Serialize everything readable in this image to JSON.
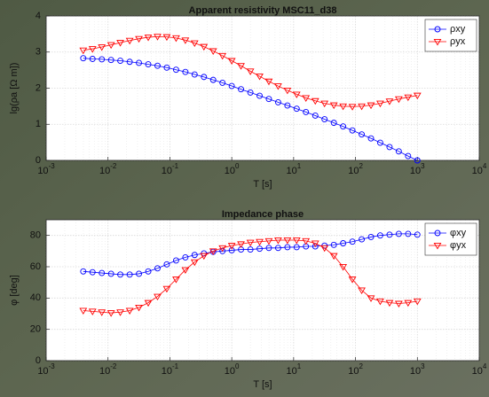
{
  "chart_data": [
    {
      "type": "line",
      "title": "Apparent resistivity MSC11_d38",
      "xlabel": "T [s]",
      "ylabel": "lg(ρa [Ω m])",
      "xscale": "log",
      "grid": true,
      "legend": "upper right",
      "xlim": [
        0.001,
        10000
      ],
      "ylim": [
        0,
        4
      ],
      "xticks": [
        {
          "value": 0.001,
          "label": "10",
          "exponent": "-3"
        },
        {
          "value": 0.01,
          "label": "10",
          "exponent": "-2"
        },
        {
          "value": 0.1,
          "label": "10",
          "exponent": "-1"
        },
        {
          "value": 1,
          "label": "10",
          "exponent": "0"
        },
        {
          "value": 10,
          "label": "10",
          "exponent": "1"
        },
        {
          "value": 100,
          "label": "10",
          "exponent": "2"
        },
        {
          "value": 1000,
          "label": "10",
          "exponent": "3"
        },
        {
          "value": 10000,
          "label": "10",
          "exponent": "4"
        }
      ],
      "yticks": [
        0,
        1,
        2,
        3,
        4
      ],
      "x": [
        0.00398,
        0.00562,
        0.00794,
        0.0112,
        0.0158,
        0.0224,
        0.0316,
        0.0447,
        0.0631,
        0.0891,
        0.126,
        0.178,
        0.251,
        0.355,
        0.501,
        0.708,
        1,
        1.41,
        2,
        2.82,
        3.98,
        5.62,
        7.94,
        11.2,
        15.8,
        22.4,
        31.6,
        44.7,
        63.1,
        89.1,
        126,
        178,
        251,
        355,
        501,
        708,
        1000
      ],
      "series": [
        {
          "name": "ρxy",
          "color": "#0000ff",
          "marker": "circle",
          "values": [
            2.83,
            2.81,
            2.8,
            2.78,
            2.76,
            2.73,
            2.7,
            2.66,
            2.62,
            2.57,
            2.51,
            2.45,
            2.38,
            2.31,
            2.23,
            2.15,
            2.06,
            1.97,
            1.88,
            1.79,
            1.7,
            1.61,
            1.52,
            1.43,
            1.34,
            1.24,
            1.14,
            1.04,
            0.94,
            0.83,
            0.72,
            0.61,
            0.49,
            0.37,
            0.25,
            0.12,
            0.0
          ]
        },
        {
          "name": "ρyx",
          "color": "#ff0000",
          "marker": "triangle-down",
          "values": [
            3.05,
            3.09,
            3.14,
            3.2,
            3.26,
            3.32,
            3.37,
            3.41,
            3.43,
            3.42,
            3.39,
            3.33,
            3.25,
            3.15,
            3.03,
            2.9,
            2.76,
            2.62,
            2.47,
            2.33,
            2.19,
            2.06,
            1.94,
            1.83,
            1.73,
            1.65,
            1.58,
            1.53,
            1.5,
            1.49,
            1.5,
            1.53,
            1.58,
            1.64,
            1.7,
            1.75,
            1.8
          ]
        }
      ]
    },
    {
      "type": "line",
      "title": "Impedance phase",
      "xlabel": "T [s]",
      "ylabel": "φ [deg]",
      "xscale": "log",
      "grid": true,
      "legend": "upper right",
      "xlim": [
        0.001,
        10000
      ],
      "ylim": [
        0,
        90
      ],
      "xticks": [
        {
          "value": 0.001,
          "label": "10",
          "exponent": "-3"
        },
        {
          "value": 0.01,
          "label": "10",
          "exponent": "-2"
        },
        {
          "value": 0.1,
          "label": "10",
          "exponent": "-1"
        },
        {
          "value": 1,
          "label": "10",
          "exponent": "0"
        },
        {
          "value": 10,
          "label": "10",
          "exponent": "1"
        },
        {
          "value": 100,
          "label": "10",
          "exponent": "2"
        },
        {
          "value": 1000,
          "label": "10",
          "exponent": "3"
        },
        {
          "value": 10000,
          "label": "10",
          "exponent": "4"
        }
      ],
      "yticks": [
        0,
        20,
        40,
        60,
        80
      ],
      "x": [
        0.00398,
        0.00562,
        0.00794,
        0.0112,
        0.0158,
        0.0224,
        0.0316,
        0.0447,
        0.0631,
        0.0891,
        0.126,
        0.178,
        0.251,
        0.355,
        0.501,
        0.708,
        1,
        1.41,
        2,
        2.82,
        3.98,
        5.62,
        7.94,
        11.2,
        15.8,
        22.4,
        31.6,
        44.7,
        63.1,
        89.1,
        126,
        178,
        251,
        355,
        501,
        708,
        1000
      ],
      "series": [
        {
          "name": "φxy",
          "color": "#0000ff",
          "marker": "circle",
          "values": [
            57,
            56.5,
            56,
            55.5,
            55,
            55,
            55.5,
            57,
            59,
            61.5,
            64,
            66,
            67.5,
            68.5,
            69.5,
            70,
            70.5,
            71,
            71,
            71.5,
            72,
            72,
            72.5,
            72.5,
            73,
            73,
            73.5,
            74,
            75,
            76,
            77.5,
            79,
            80,
            80.5,
            81,
            81,
            80.5
          ]
        },
        {
          "name": "φyx",
          "color": "#ff0000",
          "marker": "triangle-down",
          "values": [
            32,
            31.5,
            31,
            30.5,
            31,
            32,
            34,
            37,
            41,
            46,
            52,
            58,
            63,
            67,
            70,
            72,
            73.5,
            74.5,
            75.5,
            76,
            76.5,
            77,
            77,
            77,
            76.5,
            75,
            72,
            67,
            60,
            52,
            45,
            40,
            38,
            37,
            36.5,
            37,
            38
          ]
        }
      ]
    }
  ]
}
